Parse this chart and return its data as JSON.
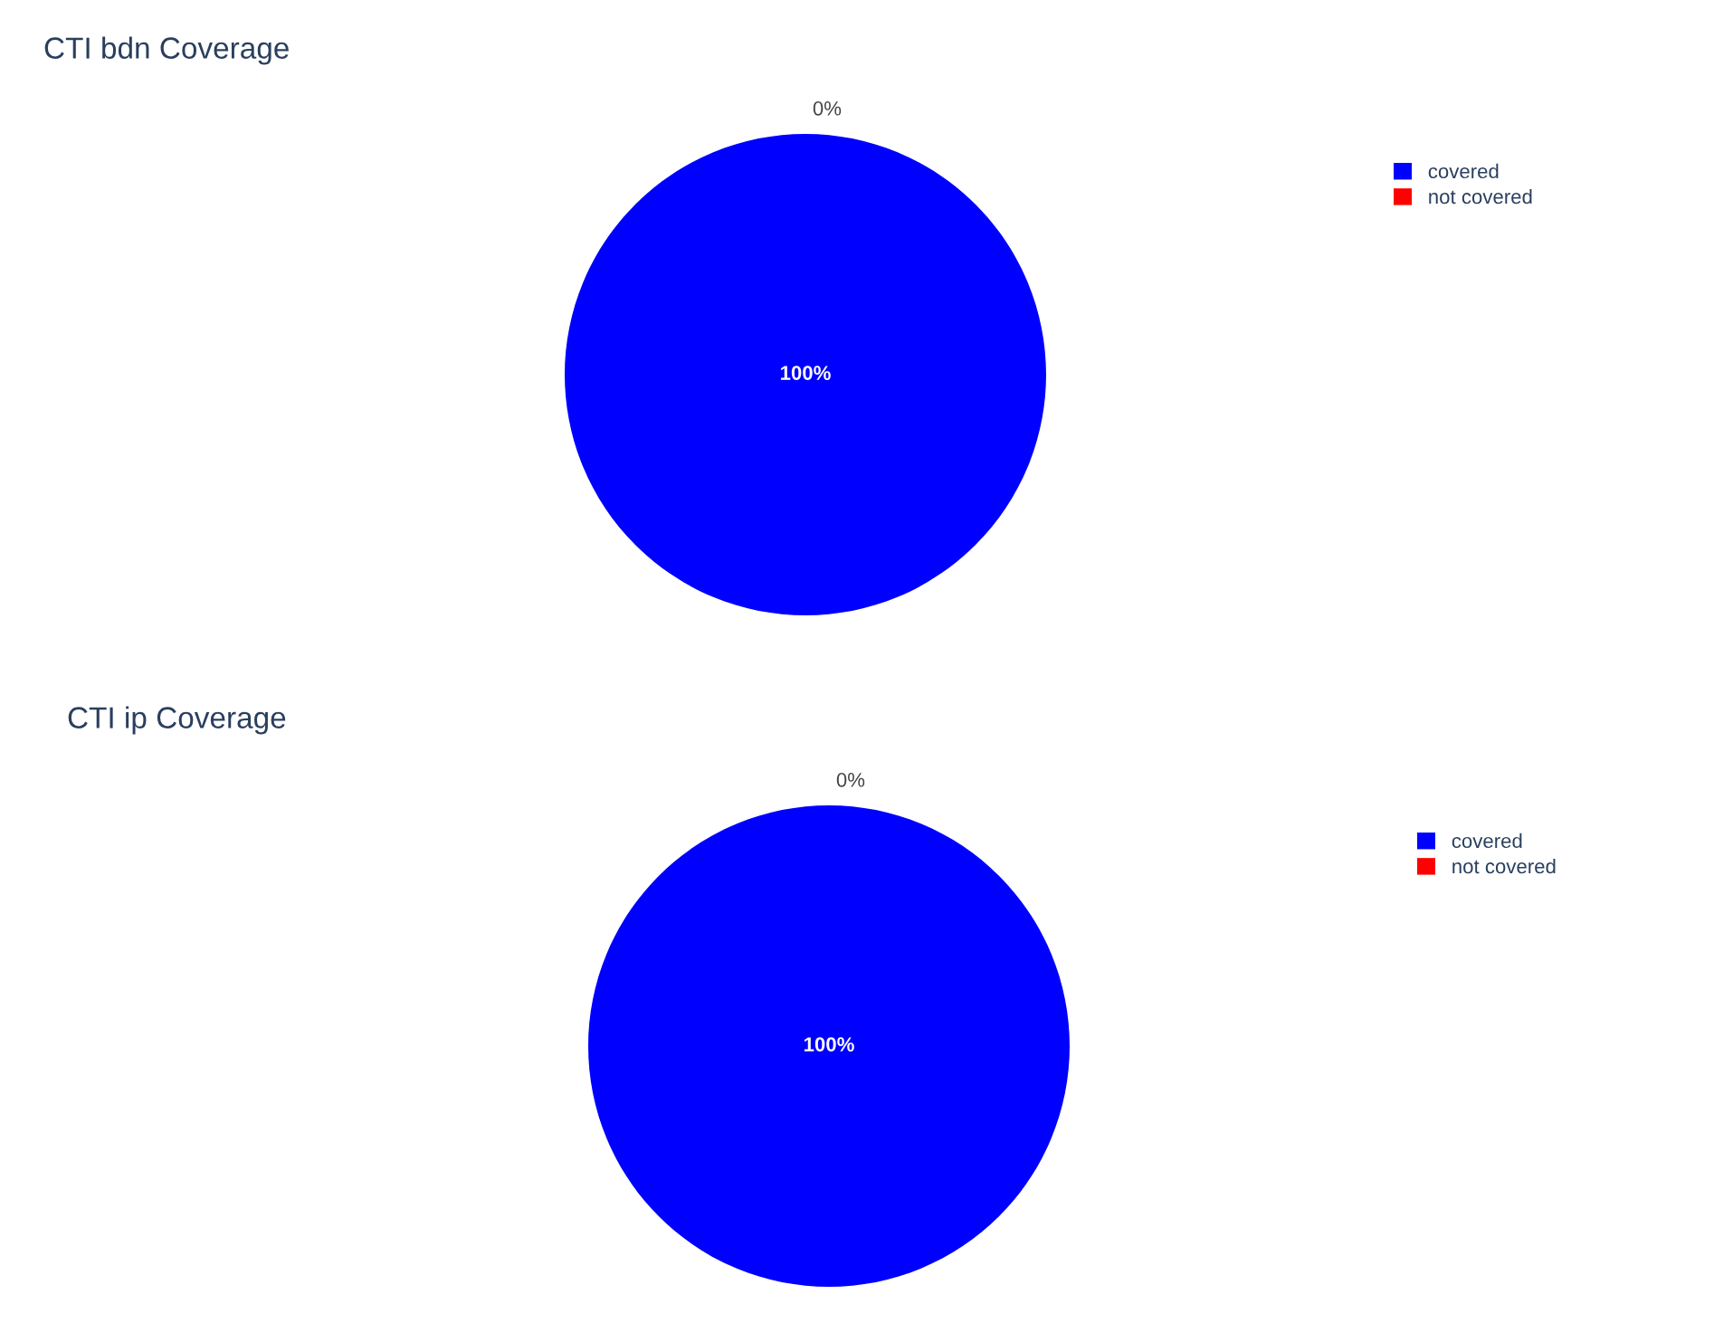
{
  "chart_data": [
    {
      "type": "pie",
      "title": "CTI bdn Coverage",
      "categories": [
        "covered",
        "not covered"
      ],
      "values": [
        100,
        0
      ],
      "colors": [
        "#0000ff",
        "#ff0000"
      ],
      "value_labels": [
        "100%",
        "0%"
      ],
      "legend": "top right"
    },
    {
      "type": "pie",
      "title": "CTI ip Coverage",
      "categories": [
        "covered",
        "not covered"
      ],
      "values": [
        100,
        0
      ],
      "colors": [
        "#0000ff",
        "#ff0000"
      ],
      "value_labels": [
        "100%",
        "0%"
      ],
      "legend": "top right"
    }
  ]
}
